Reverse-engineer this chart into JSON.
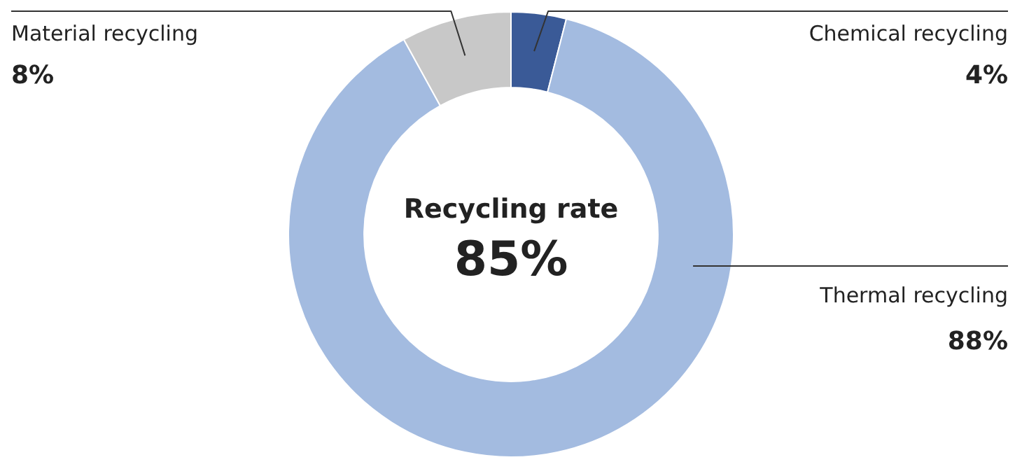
{
  "chart_data": {
    "type": "donut",
    "categories": [
      "Chemical recycling",
      "Thermal recycling",
      "Material recycling"
    ],
    "values": [
      4,
      88,
      8
    ],
    "value_labels": [
      "4%",
      "88%",
      "8%"
    ],
    "colors": [
      "#3a5a97",
      "#a3bbe0",
      "#c8c8c8"
    ],
    "annotations": [
      "Recycling rate",
      "85%"
    ],
    "legend": false
  }
}
